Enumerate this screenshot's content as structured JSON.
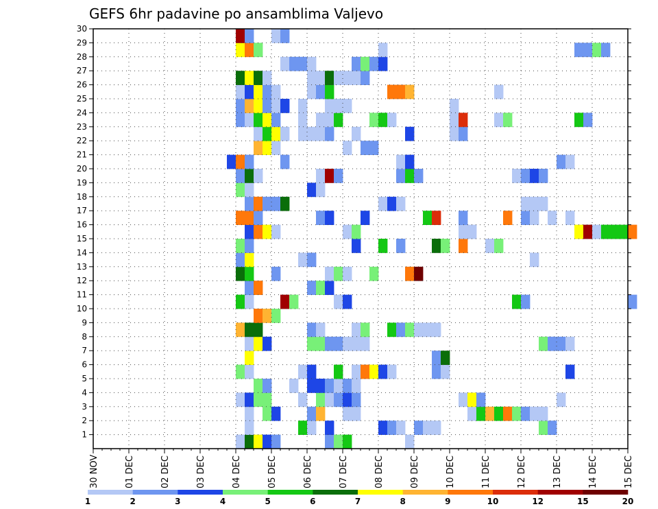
{
  "chart_data": {
    "type": "heatmap",
    "title": "GEFS 6hr padavine po ansamblima Valjevo",
    "x_tick_labels": [
      "30 NOV",
      "01 DEC",
      "02 DEC",
      "03 DEC",
      "04 DEC",
      "05 DEC",
      "06 DEC",
      "07 DEC",
      "08 DEC",
      "09 DEC",
      "10 DEC",
      "11 DEC",
      "12 DEC",
      "13 DEC",
      "14 DEC",
      "15 DEC"
    ],
    "y_tick_labels": [
      "1",
      "2",
      "3",
      "4",
      "5",
      "6",
      "7",
      "8",
      "9",
      "10",
      "11",
      "12",
      "13",
      "14",
      "15",
      "16",
      "17",
      "18",
      "19",
      "20",
      "21",
      "22",
      "23",
      "24",
      "25",
      "26",
      "27",
      "28",
      "29",
      "30"
    ],
    "ylim": [
      0,
      30
    ],
    "x_steps": 60,
    "grid": "dotted",
    "colorbar": {
      "labels": [
        "1",
        "2",
        "3",
        "4",
        "5",
        "6",
        "7",
        "8",
        "9",
        "10",
        "12",
        "15",
        "20"
      ],
      "colors": [
        "#b4c8f5",
        "#6e96f0",
        "#1e46e6",
        "#78f078",
        "#14c814",
        "#0a6e0a",
        "#ffff00",
        "#ffb432",
        "#ff780a",
        "#dc2d0a",
        "#a00000",
        "#6e0000"
      ]
    },
    "series": [
      {
        "member": 0,
        "cells": [
          [
            16,
            1
          ],
          [
            17,
            6
          ],
          [
            18,
            7
          ],
          [
            19,
            3
          ],
          [
            20,
            2
          ],
          [
            26,
            2
          ],
          [
            27,
            4
          ],
          [
            28,
            5
          ],
          [
            35,
            1
          ]
        ]
      },
      {
        "member": 1,
        "cells": [
          [
            17,
            1
          ],
          [
            23,
            5
          ],
          [
            24,
            1
          ],
          [
            26,
            3
          ],
          [
            32,
            3
          ],
          [
            33,
            2
          ],
          [
            34,
            1
          ],
          [
            36,
            2
          ],
          [
            37,
            1
          ],
          [
            38,
            1
          ],
          [
            50,
            4
          ],
          [
            51,
            2
          ]
        ]
      },
      {
        "member": 2,
        "cells": [
          [
            17,
            1
          ],
          [
            19,
            4
          ],
          [
            20,
            3
          ],
          [
            24,
            2
          ],
          [
            25,
            8
          ],
          [
            28,
            1
          ],
          [
            29,
            1
          ],
          [
            42,
            1
          ],
          [
            43,
            5
          ],
          [
            44,
            8
          ],
          [
            45,
            5
          ],
          [
            46,
            9
          ],
          [
            47,
            4
          ],
          [
            48,
            2
          ],
          [
            49,
            1
          ],
          [
            50,
            1
          ]
        ]
      },
      {
        "member": 3,
        "cells": [
          [
            16,
            1
          ],
          [
            17,
            3
          ],
          [
            18,
            4
          ],
          [
            19,
            4
          ],
          [
            23,
            1
          ],
          [
            25,
            4
          ],
          [
            26,
            1
          ],
          [
            27,
            2
          ],
          [
            28,
            3
          ],
          [
            29,
            2
          ],
          [
            41,
            1
          ],
          [
            42,
            7
          ],
          [
            43,
            2
          ],
          [
            52,
            1
          ]
        ]
      },
      {
        "member": 4,
        "cells": [
          [
            18,
            4
          ],
          [
            19,
            2
          ],
          [
            22,
            1
          ],
          [
            24,
            3
          ],
          [
            25,
            3
          ],
          [
            26,
            2
          ],
          [
            27,
            1
          ],
          [
            28,
            2
          ],
          [
            29,
            1
          ]
        ]
      },
      {
        "member": 5,
        "cells": [
          [
            16,
            4
          ],
          [
            17,
            1
          ],
          [
            23,
            1
          ],
          [
            24,
            3
          ],
          [
            27,
            5
          ],
          [
            29,
            1
          ],
          [
            30,
            9
          ],
          [
            31,
            7
          ],
          [
            32,
            3
          ],
          [
            33,
            1
          ],
          [
            38,
            2
          ],
          [
            39,
            1
          ],
          [
            53,
            3
          ]
        ]
      },
      {
        "member": 6,
        "cells": [
          [
            17,
            7
          ],
          [
            38,
            2
          ],
          [
            39,
            6
          ]
        ]
      },
      {
        "member": 7,
        "cells": [
          [
            17,
            1
          ],
          [
            18,
            7
          ],
          [
            19,
            3
          ],
          [
            24,
            4
          ],
          [
            25,
            4
          ],
          [
            26,
            2
          ],
          [
            27,
            2
          ],
          [
            28,
            1
          ],
          [
            29,
            1
          ],
          [
            30,
            1
          ],
          [
            50,
            4
          ],
          [
            51,
            2
          ],
          [
            52,
            2
          ],
          [
            53,
            1
          ]
        ]
      },
      {
        "member": 8,
        "cells": [
          [
            16,
            8
          ],
          [
            17,
            6
          ],
          [
            18,
            6
          ],
          [
            24,
            2
          ],
          [
            25,
            1
          ],
          [
            29,
            1
          ],
          [
            30,
            4
          ],
          [
            33,
            5
          ],
          [
            34,
            2
          ],
          [
            35,
            4
          ],
          [
            36,
            1
          ],
          [
            37,
            1
          ],
          [
            38,
            1
          ]
        ]
      },
      {
        "member": 9,
        "cells": [
          [
            18,
            9
          ],
          [
            19,
            8
          ],
          [
            20,
            4
          ]
        ]
      },
      {
        "member": 10,
        "cells": [
          [
            16,
            5
          ],
          [
            17,
            1
          ],
          [
            21,
            11
          ],
          [
            22,
            4
          ],
          [
            27,
            1
          ],
          [
            28,
            3
          ],
          [
            47,
            5
          ],
          [
            48,
            2
          ],
          [
            60,
            2
          ]
        ]
      },
      {
        "member": 11,
        "cells": [
          [
            17,
            2
          ],
          [
            18,
            9
          ],
          [
            24,
            2
          ],
          [
            25,
            4
          ],
          [
            26,
            3
          ]
        ]
      },
      {
        "member": 12,
        "cells": [
          [
            16,
            6
          ],
          [
            17,
            5
          ],
          [
            20,
            2
          ],
          [
            26,
            1
          ],
          [
            27,
            4
          ],
          [
            28,
            1
          ],
          [
            31,
            4
          ],
          [
            35,
            9
          ],
          [
            36,
            12
          ]
        ]
      },
      {
        "member": 13,
        "cells": [
          [
            16,
            2
          ],
          [
            17,
            7
          ],
          [
            23,
            1
          ],
          [
            24,
            2
          ],
          [
            49,
            1
          ]
        ]
      },
      {
        "member": 14,
        "cells": [
          [
            16,
            4
          ],
          [
            17,
            2
          ],
          [
            29,
            3
          ],
          [
            32,
            5
          ],
          [
            34,
            2
          ],
          [
            38,
            6
          ],
          [
            39,
            4
          ],
          [
            41,
            9
          ],
          [
            44,
            1
          ],
          [
            45,
            4
          ]
        ]
      },
      {
        "member": 15,
        "cells": [
          [
            17,
            3
          ],
          [
            18,
            9
          ],
          [
            19,
            7
          ],
          [
            20,
            1
          ],
          [
            28,
            1
          ],
          [
            29,
            4
          ],
          [
            41,
            1
          ],
          [
            42,
            1
          ],
          [
            54,
            7
          ],
          [
            55,
            11
          ],
          [
            56,
            1
          ],
          [
            57,
            5
          ],
          [
            58,
            5
          ],
          [
            59,
            5
          ],
          [
            60,
            9
          ]
        ]
      },
      {
        "member": 16,
        "cells": [
          [
            16,
            9
          ],
          [
            17,
            9
          ],
          [
            18,
            2
          ],
          [
            25,
            2
          ],
          [
            26,
            3
          ],
          [
            30,
            3
          ],
          [
            37,
            5
          ],
          [
            38,
            10
          ],
          [
            41,
            2
          ],
          [
            46,
            9
          ],
          [
            48,
            2
          ],
          [
            49,
            1
          ],
          [
            51,
            1
          ],
          [
            53,
            1
          ]
        ]
      },
      {
        "member": 17,
        "cells": [
          [
            17,
            2
          ],
          [
            18,
            9
          ],
          [
            19,
            2
          ],
          [
            20,
            2
          ],
          [
            21,
            6
          ],
          [
            32,
            1
          ],
          [
            33,
            3
          ],
          [
            34,
            1
          ],
          [
            48,
            1
          ],
          [
            49,
            1
          ],
          [
            50,
            1
          ]
        ]
      },
      {
        "member": 18,
        "cells": [
          [
            16,
            4
          ],
          [
            17,
            1
          ],
          [
            24,
            3
          ],
          [
            25,
            1
          ]
        ]
      },
      {
        "member": 19,
        "cells": [
          [
            16,
            2
          ],
          [
            17,
            6
          ],
          [
            18,
            1
          ],
          [
            25,
            1
          ],
          [
            26,
            11
          ],
          [
            27,
            2
          ],
          [
            34,
            2
          ],
          [
            35,
            5
          ],
          [
            36,
            2
          ],
          [
            47,
            1
          ],
          [
            48,
            2
          ],
          [
            49,
            3
          ],
          [
            50,
            2
          ]
        ]
      },
      {
        "member": 20,
        "cells": [
          [
            15,
            3
          ],
          [
            16,
            9
          ],
          [
            17,
            2
          ],
          [
            21,
            2
          ],
          [
            34,
            1
          ],
          [
            35,
            3
          ],
          [
            52,
            2
          ],
          [
            53,
            1
          ]
        ]
      },
      {
        "member": 21,
        "cells": [
          [
            18,
            8
          ],
          [
            19,
            7
          ],
          [
            20,
            1
          ],
          [
            28,
            1
          ],
          [
            30,
            2
          ],
          [
            31,
            2
          ]
        ]
      },
      {
        "member": 22,
        "cells": [
          [
            18,
            1
          ],
          [
            19,
            5
          ],
          [
            20,
            7
          ],
          [
            21,
            1
          ],
          [
            23,
            1
          ],
          [
            24,
            1
          ],
          [
            25,
            1
          ],
          [
            26,
            2
          ],
          [
            29,
            1
          ],
          [
            35,
            3
          ],
          [
            40,
            1
          ],
          [
            41,
            2
          ]
        ]
      },
      {
        "member": 23,
        "cells": [
          [
            16,
            2
          ],
          [
            17,
            1
          ],
          [
            18,
            5
          ],
          [
            19,
            7
          ],
          [
            20,
            2
          ],
          [
            23,
            1
          ],
          [
            25,
            1
          ],
          [
            26,
            1
          ],
          [
            27,
            5
          ],
          [
            31,
            4
          ],
          [
            32,
            5
          ],
          [
            33,
            1
          ],
          [
            40,
            1
          ],
          [
            41,
            10
          ],
          [
            45,
            1
          ],
          [
            46,
            4
          ],
          [
            54,
            5
          ],
          [
            55,
            2
          ]
        ]
      },
      {
        "member": 24,
        "cells": [
          [
            16,
            2
          ],
          [
            17,
            8
          ],
          [
            18,
            7
          ],
          [
            19,
            2
          ],
          [
            20,
            1
          ],
          [
            21,
            3
          ],
          [
            23,
            1
          ],
          [
            26,
            1
          ],
          [
            27,
            1
          ],
          [
            28,
            1
          ],
          [
            40,
            1
          ]
        ]
      },
      {
        "member": 25,
        "cells": [
          [
            16,
            1
          ],
          [
            17,
            3
          ],
          [
            18,
            7
          ],
          [
            19,
            2
          ],
          [
            20,
            1
          ],
          [
            24,
            1
          ],
          [
            25,
            2
          ],
          [
            26,
            5
          ],
          [
            33,
            9
          ],
          [
            34,
            9
          ],
          [
            35,
            8
          ],
          [
            45,
            1
          ]
        ]
      },
      {
        "member": 26,
        "cells": [
          [
            16,
            6
          ],
          [
            17,
            7
          ],
          [
            18,
            6
          ],
          [
            19,
            1
          ],
          [
            24,
            1
          ],
          [
            25,
            1
          ],
          [
            26,
            6
          ],
          [
            27,
            1
          ],
          [
            28,
            1
          ],
          [
            29,
            1
          ],
          [
            30,
            2
          ]
        ]
      },
      {
        "member": 27,
        "cells": [
          [
            21,
            1
          ],
          [
            22,
            2
          ],
          [
            23,
            2
          ],
          [
            24,
            1
          ],
          [
            29,
            2
          ],
          [
            30,
            4
          ],
          [
            31,
            2
          ],
          [
            32,
            3
          ]
        ]
      },
      {
        "member": 28,
        "cells": [
          [
            16,
            7
          ],
          [
            17,
            9
          ],
          [
            18,
            4
          ],
          [
            32,
            1
          ],
          [
            54,
            2
          ],
          [
            55,
            2
          ],
          [
            56,
            4
          ],
          [
            57,
            2
          ]
        ]
      },
      {
        "member": 29,
        "cells": [
          [
            16,
            11
          ],
          [
            17,
            2
          ],
          [
            20,
            1
          ],
          [
            21,
            2
          ]
        ]
      }
    ]
  }
}
